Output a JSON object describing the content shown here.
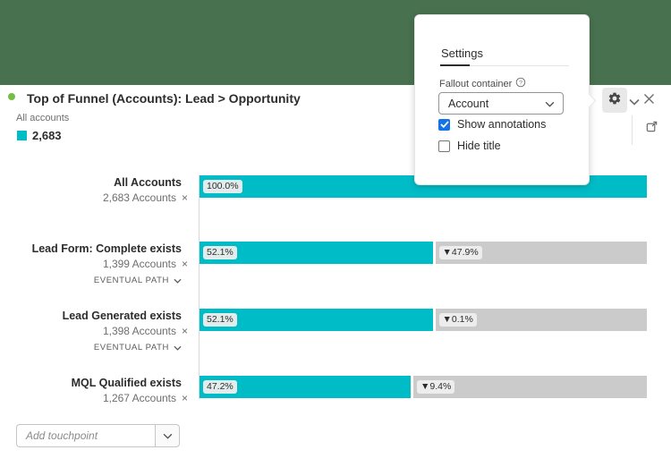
{
  "header": {
    "title": "Top of Funnel (Accounts): Lead > Opportunity"
  },
  "legend": {
    "label": "All accounts",
    "value": "2,683"
  },
  "toolbar": {
    "icons": [
      "gear-icon",
      "chevron-down-icon",
      "close-icon",
      "open-in-new-icon"
    ]
  },
  "settings_popover": {
    "tab_label": "Settings",
    "fallout_container_label": "Fallout container",
    "help_icon": "help-circle-icon",
    "dropdown_value": "Account",
    "checkboxes": [
      {
        "label": "Show annotations",
        "checked": true
      },
      {
        "label": "Hide title",
        "checked": false
      }
    ]
  },
  "chart": {
    "eventual_path_label": "EVENTUAL PATH",
    "remove_icon": "×"
  },
  "chart_data": {
    "type": "bar",
    "subtype": "fallout-funnel",
    "title": "Top of Funnel (Accounts): Lead > Opportunity",
    "legend": {
      "label": "All accounts",
      "total": 2683
    },
    "xlim": [
      0,
      100
    ],
    "grid": false,
    "steps": [
      {
        "label": "All Accounts",
        "count": "2,683 Accounts",
        "percent": 100.0,
        "percent_label": "100.0%",
        "fallout_label": null,
        "eventual_path": false
      },
      {
        "label": "Lead Form: Complete exists",
        "count": "1,399 Accounts",
        "percent": 52.1,
        "percent_label": "52.1%",
        "fallout_label": "▼47.9%",
        "eventual_path": true
      },
      {
        "label": "Lead Generated exists",
        "count": "1,398 Accounts",
        "percent": 52.1,
        "percent_label": "52.1%",
        "fallout_label": "▼0.1%",
        "eventual_path": true
      },
      {
        "label": "MQL Qualified exists",
        "count": "1,267 Accounts",
        "percent": 47.2,
        "percent_label": "47.2%",
        "fallout_label": "▼9.4%",
        "eventual_path": false
      }
    ]
  },
  "add_touchpoint": {
    "placeholder": "Add touchpoint"
  },
  "colors": {
    "teal_bar": "#00bcc6",
    "gray_bar": "#cbcbcb",
    "green_header": "#48714f",
    "annotation_dot_green": "#72bf44",
    "checkbox_blue": "#1473e6"
  }
}
